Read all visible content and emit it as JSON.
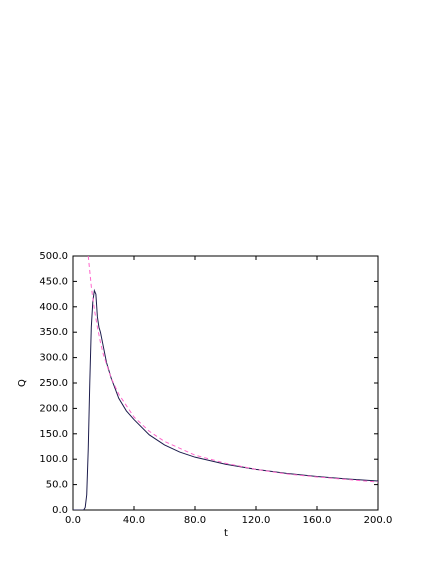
{
  "chart_data": {
    "type": "line",
    "xlabel": "t",
    "ylabel": "Q",
    "xlim": [
      0,
      200
    ],
    "ylim": [
      0,
      500
    ],
    "xticks": [
      {
        "value": 0,
        "label": "0.0"
      },
      {
        "value": 40,
        "label": "40.0"
      },
      {
        "value": 80,
        "label": "80.0"
      },
      {
        "value": 120,
        "label": "120.0"
      },
      {
        "value": 160,
        "label": "160.0"
      },
      {
        "value": 200,
        "label": "200.0"
      }
    ],
    "yticks": [
      {
        "value": 0,
        "label": "0.0"
      },
      {
        "value": 50,
        "label": "50.0"
      },
      {
        "value": 100,
        "label": "100.0"
      },
      {
        "value": 150,
        "label": "150.0"
      },
      {
        "value": 200,
        "label": "200.0"
      },
      {
        "value": 250,
        "label": "250.0"
      },
      {
        "value": 300,
        "label": "300.0"
      },
      {
        "value": 350,
        "label": "350.0"
      },
      {
        "value": 400,
        "label": "400.0"
      },
      {
        "value": 450,
        "label": "450.0"
      },
      {
        "value": 500,
        "label": "500.0"
      }
    ],
    "series": [
      {
        "color": "#1c1c4c",
        "dash": false,
        "x": [
          0,
          7,
          8,
          9,
          10,
          11,
          12,
          13,
          14,
          15,
          16,
          17,
          18,
          20,
          22,
          25,
          30,
          35,
          40,
          50,
          60,
          70,
          80,
          100,
          120,
          140,
          160,
          180,
          200
        ],
        "values": [
          0,
          0,
          5,
          30,
          120,
          250,
          360,
          410,
          432,
          425,
          380,
          360,
          350,
          320,
          290,
          260,
          220,
          195,
          178,
          148,
          128,
          114,
          104,
          90,
          80,
          72,
          66,
          61,
          57
        ]
      },
      {
        "color": "#ff66cc",
        "dash": true,
        "x": [
          10,
          12,
          14,
          16,
          18,
          20,
          25,
          30,
          40,
          50,
          60,
          80,
          100,
          120,
          140,
          160,
          180,
          200
        ],
        "values": [
          500,
          440,
          395,
          360,
          330,
          305,
          260,
          228,
          183,
          155,
          135,
          108,
          92,
          80,
          71,
          65,
          60,
          55
        ]
      }
    ]
  }
}
